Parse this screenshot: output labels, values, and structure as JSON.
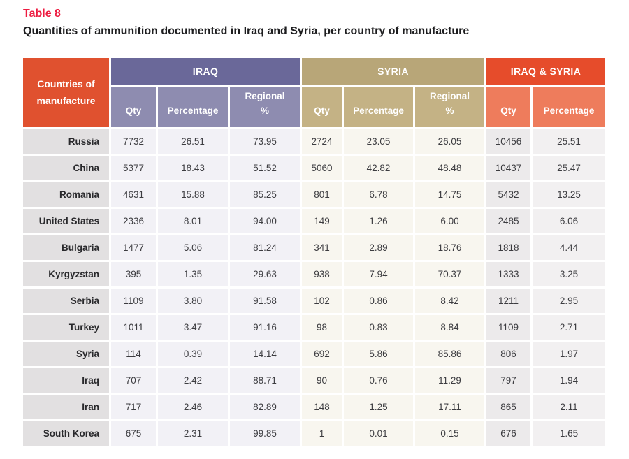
{
  "meta": {
    "table_label": "Table 8",
    "title": "Quantities of ammunition documented in Iraq and Syria, per country of manufacture"
  },
  "table": {
    "row_header": "Countries of manufacture",
    "groups": [
      {
        "label": "IRAQ",
        "columns": [
          "Qty",
          "Percentage",
          "Regional\n%"
        ]
      },
      {
        "label": "SYRIA",
        "columns": [
          "Qty",
          "Percentage",
          "Regional\n%"
        ]
      },
      {
        "label": "IRAQ & SYRIA",
        "columns": [
          "Qty",
          "Percentage"
        ]
      }
    ],
    "rows": [
      {
        "country": "Russia",
        "values": [
          "7732",
          "26.51",
          "73.95",
          "2724",
          "23.05",
          "26.05",
          "10456",
          "25.51"
        ]
      },
      {
        "country": "China",
        "values": [
          "5377",
          "18.43",
          "51.52",
          "5060",
          "42.82",
          "48.48",
          "10437",
          "25.47"
        ]
      },
      {
        "country": "Romania",
        "values": [
          "4631",
          "15.88",
          "85.25",
          "801",
          "6.78",
          "14.75",
          "5432",
          "13.25"
        ]
      },
      {
        "country": "United States",
        "values": [
          "2336",
          "8.01",
          "94.00",
          "149",
          "1.26",
          "6.00",
          "2485",
          "6.06"
        ]
      },
      {
        "country": "Bulgaria",
        "values": [
          "1477",
          "5.06",
          "81.24",
          "341",
          "2.89",
          "18.76",
          "1818",
          "4.44"
        ]
      },
      {
        "country": "Kyrgyzstan",
        "values": [
          "395",
          "1.35",
          "29.63",
          "938",
          "7.94",
          "70.37",
          "1333",
          "3.25"
        ]
      },
      {
        "country": "Serbia",
        "values": [
          "1109",
          "3.80",
          "91.58",
          "102",
          "0.86",
          "8.42",
          "1211",
          "2.95"
        ]
      },
      {
        "country": "Turkey",
        "values": [
          "1011",
          "3.47",
          "91.16",
          "98",
          "0.83",
          "8.84",
          "1109",
          "2.71"
        ]
      },
      {
        "country": "Syria",
        "values": [
          "114",
          "0.39",
          "14.14",
          "692",
          "5.86",
          "85.86",
          "806",
          "1.97"
        ]
      },
      {
        "country": "Iraq",
        "values": [
          "707",
          "2.42",
          "88.71",
          "90",
          "0.76",
          "11.29",
          "797",
          "1.94"
        ]
      },
      {
        "country": "Iran",
        "values": [
          "717",
          "2.46",
          "82.89",
          "148",
          "1.25",
          "17.11",
          "865",
          "2.11"
        ]
      },
      {
        "country": "South Korea",
        "values": [
          "675",
          "2.31",
          "99.85",
          "1",
          "0.01",
          "0.15",
          "676",
          "1.65"
        ]
      }
    ]
  },
  "colors": {
    "title_red": "#ED1C41",
    "title_text": "#1D1D1F",
    "header_orange": "#E0512F",
    "iraq_dark": "#6A6899",
    "iraq_light": "#8E8CB0",
    "syria_dark": "#B8A678",
    "syria_light": "#C4B285",
    "both_dark": "#E64C2B",
    "both_light": "#EE7C5C",
    "label_cell_bg": "#E2E0E1",
    "iraq_cell_bg": "#F2F1F6",
    "syria_cell_bg": "#F8F6EF",
    "both_qty_cell_bg": "#ECEAEB",
    "both_pct_cell_bg": "#F2F0F1",
    "label_text": "#29292C",
    "value_text": "#3C3C40"
  }
}
